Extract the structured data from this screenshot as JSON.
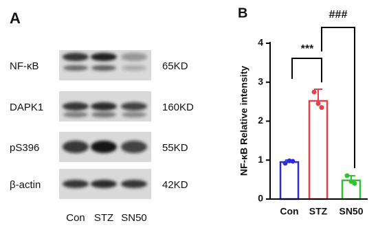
{
  "blot": {
    "panel_label": "A",
    "proteins": [
      {
        "name": "NF-κB",
        "size": "65KD"
      },
      {
        "name": "DAPK1",
        "size": "160KD"
      },
      {
        "name": "pS396",
        "size": "55KD"
      },
      {
        "name": "β-actin",
        "size": "42KD"
      }
    ],
    "lanes": [
      "Con",
      "STZ",
      "SN50"
    ]
  },
  "chart_data": {
    "type": "bar",
    "panel_label": "B",
    "y_label": "NF-κB Relative intensity",
    "categories": [
      "Con",
      "STZ",
      "SN50"
    ],
    "values": [
      0.95,
      2.52,
      0.48
    ],
    "errors": [
      0.05,
      0.3,
      0.12
    ],
    "points": [
      [
        0.92,
        0.98,
        0.97
      ],
      [
        2.75,
        2.45,
        2.35
      ],
      [
        0.6,
        0.45,
        0.4
      ]
    ],
    "colors": [
      "#2b2bd9",
      "#e8404a",
      "#2fc42f"
    ],
    "ylim": [
      0,
      4
    ],
    "yticks": [
      0,
      1,
      2,
      3,
      4
    ],
    "annotations": [
      "***",
      "###"
    ]
  }
}
